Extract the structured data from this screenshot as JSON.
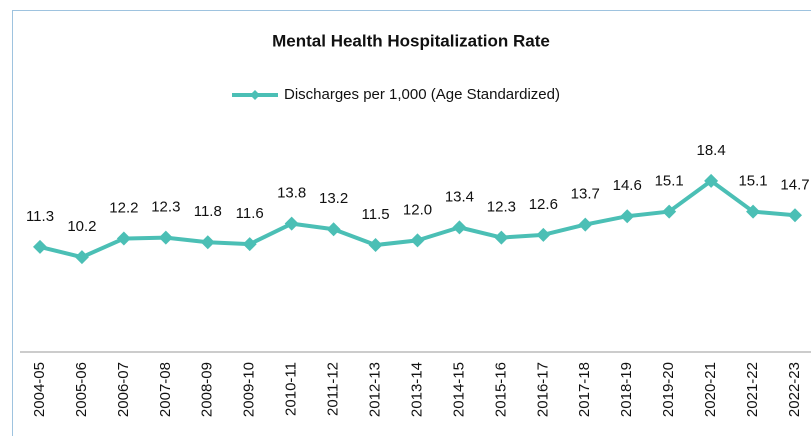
{
  "chart_data": {
    "type": "line",
    "title": "Mental Health Hospitalization Rate",
    "categories": [
      "2004-05",
      "2005-06",
      "2006-07",
      "2007-08",
      "2008-09",
      "2009-10",
      "2010-11",
      "2011-12",
      "2012-13",
      "2013-14",
      "2014-15",
      "2015-16",
      "2016-17",
      "2017-18",
      "2018-19",
      "2019-20",
      "2020-21",
      "2021-22",
      "2022-23"
    ],
    "series": [
      {
        "name": "Discharges per 1,000 (Age Standardized)",
        "color": "#4bbfb5",
        "values": [
          11.3,
          10.2,
          12.2,
          12.3,
          11.8,
          11.6,
          13.8,
          13.2,
          11.5,
          12.0,
          13.4,
          12.3,
          12.6,
          13.7,
          14.6,
          15.1,
          18.4,
          15.1,
          14.7
        ],
        "value_labels": [
          "11.3",
          "10.2",
          "12.2",
          "12.3",
          "11.8",
          "11.6",
          "13.8",
          "13.2",
          "11.5",
          "12.0",
          "13.4",
          "12.3",
          "12.6",
          "13.7",
          "14.6",
          "15.1",
          "18.4",
          "15.1",
          "14.7"
        ]
      }
    ],
    "ylim": [
      0,
      20
    ],
    "legend": "top"
  }
}
